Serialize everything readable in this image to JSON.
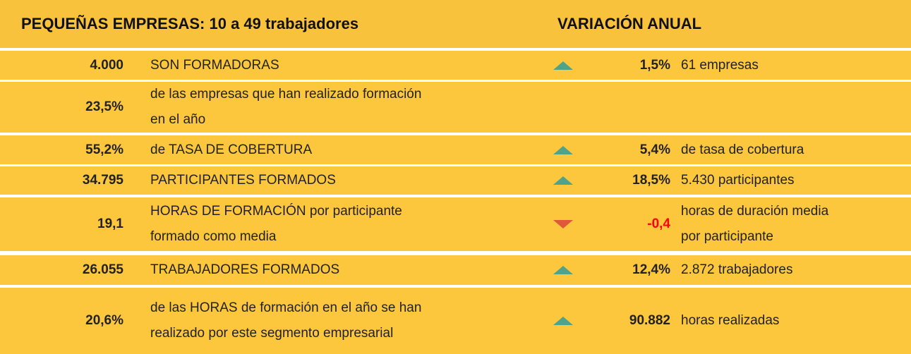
{
  "header": {
    "title": "PEQUEÑAS EMPRESAS: 10 a 49 trabajadores",
    "variation": "VARIACIÓN ANUAL"
  },
  "rows": [
    {
      "value": "4.000",
      "text": [
        "SON FORMADORAS"
      ],
      "trend": "up",
      "change": "1,5%",
      "note": [
        "61 empresas"
      ]
    },
    {
      "value": "23,5%",
      "text": [
        "de las empresas que han realizado formación",
        "en el año"
      ]
    },
    {
      "value": "55,2%",
      "text": [
        "de TASA DE COBERTURA"
      ],
      "trend": "up",
      "change": "5,4%",
      "note": [
        "de tasa de cobertura"
      ]
    },
    {
      "value": "34.795",
      "text": [
        "PARTICIPANTES FORMADOS"
      ],
      "trend": "up",
      "change": "18,5%",
      "note": [
        "5.430 participantes"
      ]
    },
    {
      "value": "19,1",
      "text": [
        "HORAS DE FORMACIÓN por participante",
        "formado como media"
      ],
      "trend": "down",
      "change": "-0,4",
      "note": [
        "horas de duración media",
        "por participante"
      ]
    },
    {
      "value": "26.055",
      "text": [
        "TRABAJADORES FORMADOS"
      ],
      "trend": "up",
      "change": "12,4%",
      "note": [
        "2.872 trabajadores"
      ]
    },
    {
      "value": "20,6%",
      "text": [
        "de las HORAS de formación en el año se han",
        "realizado por este segmento empresarial"
      ],
      "trend": "up",
      "change": "90.882",
      "note": [
        "horas realizadas"
      ]
    }
  ]
}
